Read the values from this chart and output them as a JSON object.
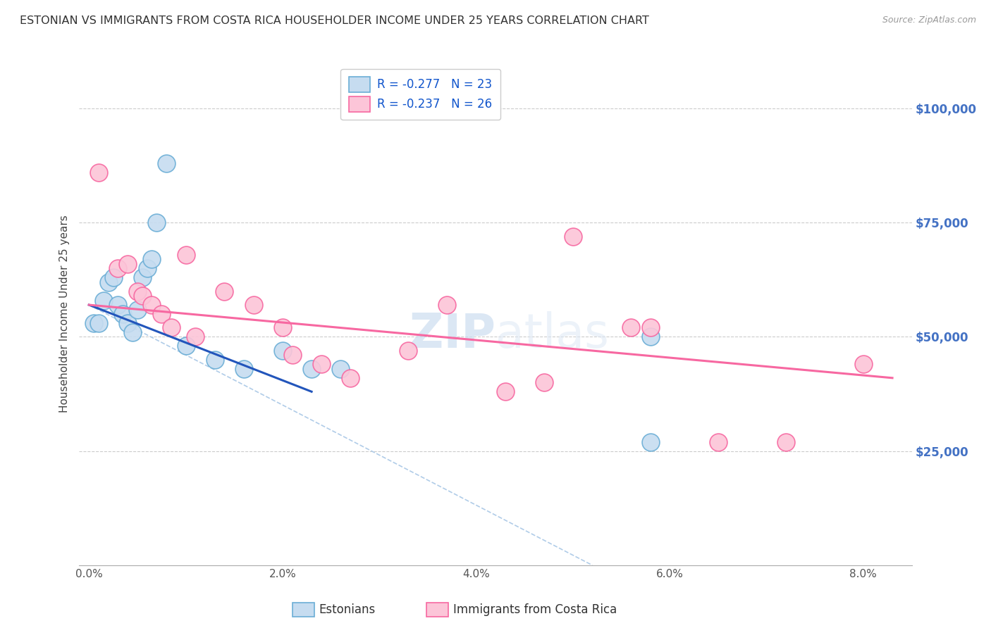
{
  "title": "ESTONIAN VS IMMIGRANTS FROM COSTA RICA HOUSEHOLDER INCOME UNDER 25 YEARS CORRELATION CHART",
  "source": "Source: ZipAtlas.com",
  "ylabel": "Householder Income Under 25 years",
  "xlabel_ticks": [
    "0.0%",
    "2.0%",
    "4.0%",
    "6.0%",
    "8.0%"
  ],
  "xlabel_vals": [
    0.0,
    2.0,
    4.0,
    6.0,
    8.0
  ],
  "ylabel_ticks": [
    "$25,000",
    "$50,000",
    "$75,000",
    "$100,000"
  ],
  "ylabel_vals": [
    25000,
    50000,
    75000,
    100000
  ],
  "xlim": [
    -0.1,
    8.5
  ],
  "ylim": [
    0,
    110000
  ],
  "legend1_label": "R = -0.277   N = 23",
  "legend2_label": "R = -0.237   N = 26",
  "bottom_legend1": "Estonians",
  "bottom_legend2": "Immigrants from Costa Rica",
  "watermark_zip": "ZIP",
  "watermark_atlas": "atlas",
  "blue_scatter_x": [
    0.05,
    0.1,
    0.15,
    0.2,
    0.25,
    0.3,
    0.35,
    0.4,
    0.45,
    0.5,
    0.55,
    0.6,
    0.65,
    0.7,
    0.8,
    1.0,
    1.3,
    1.6,
    2.0,
    2.3,
    2.6,
    5.8,
    5.8
  ],
  "blue_scatter_y": [
    53000,
    53000,
    58000,
    62000,
    63000,
    57000,
    55000,
    53000,
    51000,
    56000,
    63000,
    65000,
    67000,
    75000,
    88000,
    48000,
    45000,
    43000,
    47000,
    43000,
    43000,
    50000,
    27000
  ],
  "pink_scatter_x": [
    0.1,
    0.3,
    0.4,
    0.5,
    0.55,
    0.65,
    0.75,
    0.85,
    1.0,
    1.1,
    1.4,
    1.7,
    2.0,
    2.1,
    2.4,
    2.7,
    3.3,
    3.7,
    4.3,
    4.7,
    5.0,
    5.6,
    5.8,
    6.5,
    7.2,
    8.0
  ],
  "pink_scatter_y": [
    86000,
    65000,
    66000,
    60000,
    59000,
    57000,
    55000,
    52000,
    68000,
    50000,
    60000,
    57000,
    52000,
    46000,
    44000,
    41000,
    47000,
    57000,
    38000,
    40000,
    72000,
    52000,
    52000,
    27000,
    27000,
    44000
  ],
  "blue_line_x": [
    0.0,
    2.3
  ],
  "blue_line_y": [
    57000,
    38000
  ],
  "pink_line_x": [
    0.0,
    8.3
  ],
  "pink_line_y": [
    57000,
    41000
  ],
  "dashed_line_x": [
    0.0,
    5.2
  ],
  "dashed_line_y": [
    57000,
    0
  ],
  "blue_color": "#6baed6",
  "blue_scatter_color": "#c6dcf0",
  "pink_color": "#f768a1",
  "pink_scatter_color": "#fcc5d8",
  "dashed_color": "#b0cce8",
  "grid_color": "#cccccc",
  "right_label_color": "#4472c4",
  "title_color": "#333333",
  "source_color": "#999999",
  "background_color": "#ffffff"
}
